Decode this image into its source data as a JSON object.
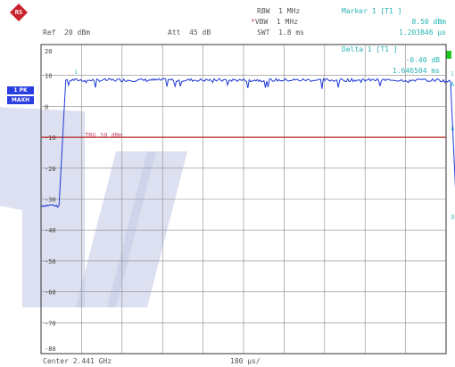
{
  "header": {
    "rbw_label": "RBW",
    "rbw_value": "1 MHz",
    "vbw_label": "VBW",
    "vbw_value": "1 MHz",
    "swt_label": "SWT",
    "swt_value": "1.8 ms",
    "ref_label": "Ref",
    "ref_value": "20 dBm",
    "att_label": "Att",
    "att_value": "45 dB",
    "vbw_star": "*"
  },
  "marker1": {
    "title": "Marker 1 [T1 ]",
    "level": "8.50 dBm",
    "time": "1.203846 µs"
  },
  "delta1": {
    "title": "Delta 1 [T1 ]",
    "level": "-0.40 dB",
    "time": "1.646504 ms"
  },
  "side_labels": {
    "pk": "1 PK",
    "maxh": "MAXH",
    "a_mark": "A",
    "four_mark": "4",
    "three_db_mark": "3"
  },
  "trigger_label": "TRG 10 dBm",
  "y_ticks": [
    "20",
    "10",
    "0",
    "-10",
    "-20",
    "-30",
    "-40",
    "-50",
    "-60",
    "-70",
    "-80"
  ],
  "footer": {
    "center": "Center 2.441 GHz",
    "span_per_div": "180 µs/"
  },
  "marker_tags": {
    "m1": "1",
    "d1": "1"
  },
  "colors": {
    "trace": "#1f3bd6",
    "trigger_line": "#b3241d",
    "grid": "#888888",
    "watermark": "#c6cbe6",
    "text_cyan": "#28b3b3",
    "green_marker": "#1ec81e",
    "logo": "#c8232c"
  },
  "chart_data": {
    "type": "line",
    "x_unit": "µs",
    "x_per_div": 180,
    "y_unit": "dBm",
    "ylim": [
      -80,
      20
    ],
    "trigger_level": 10,
    "series": [
      {
        "x": [
          0,
          80,
          110,
          140,
          1770,
          1800,
          1820,
          1845,
          1860,
          1870
        ],
        "y": [
          -32,
          -32,
          8.5,
          8.5,
          8.5,
          8.1,
          8.0,
          -32,
          -32,
          -32
        ]
      }
    ]
  }
}
